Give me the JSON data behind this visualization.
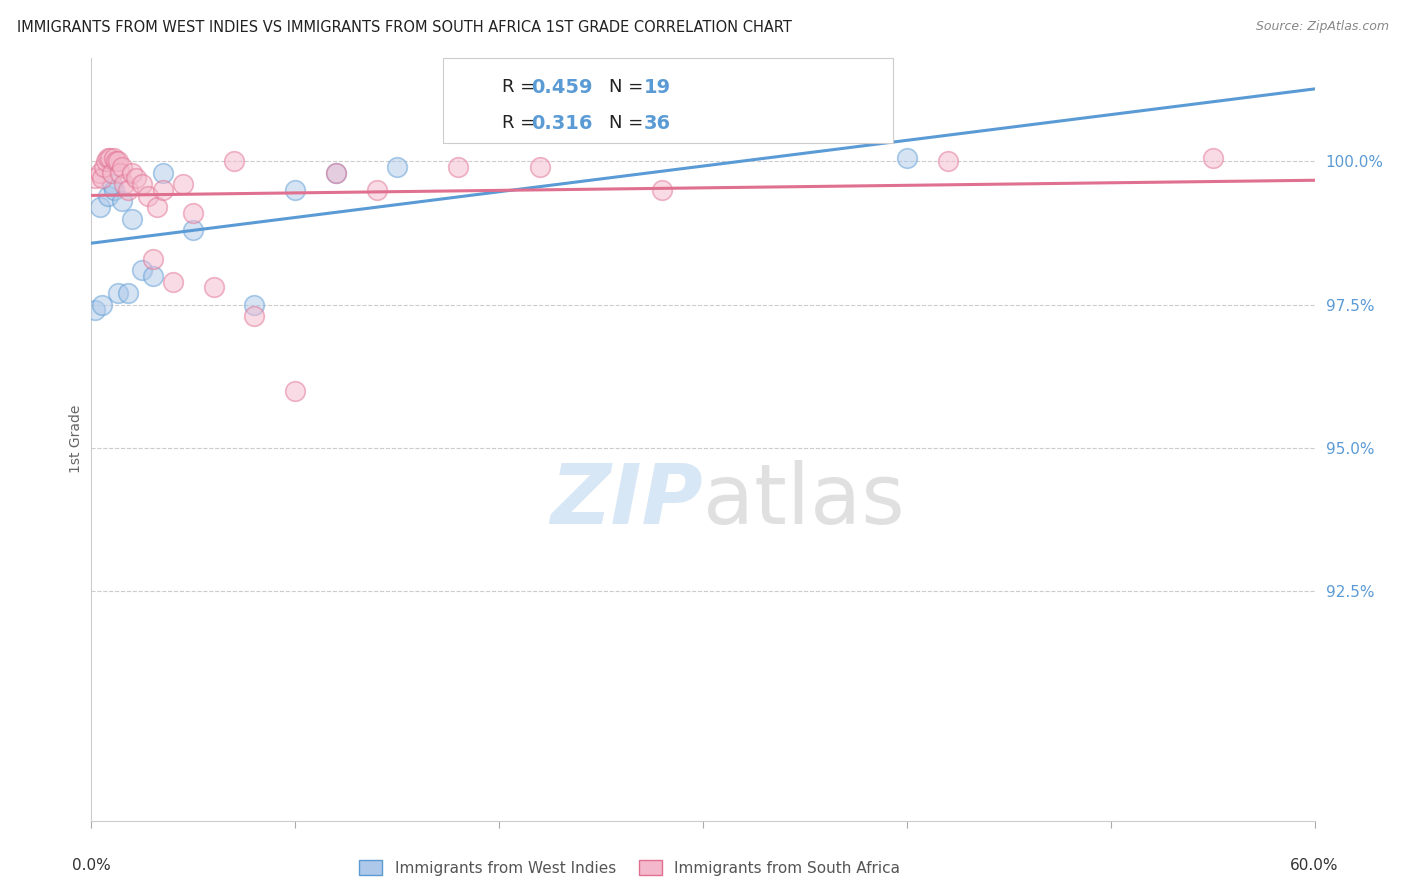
{
  "title": "IMMIGRANTS FROM WEST INDIES VS IMMIGRANTS FROM SOUTH AFRICA 1ST GRADE CORRELATION CHART",
  "source": "Source: ZipAtlas.com",
  "ylabel": "1st Grade",
  "xlim": [
    0.0,
    60.0
  ],
  "ylim": [
    88.5,
    101.8
  ],
  "yticks": [
    92.5,
    95.0,
    97.5,
    100.0
  ],
  "ytick_labels": [
    "92.5%",
    "95.0%",
    "97.5%",
    "100.0%"
  ],
  "west_indies_R": 0.459,
  "west_indies_N": 19,
  "south_africa_R": 0.316,
  "south_africa_N": 36,
  "west_indies_color": "#adc8e8",
  "south_africa_color": "#f4b8cc",
  "west_indies_line_color": "#5b9bd5",
  "south_africa_line_color": "#e07090",
  "legend_label_wi": "Immigrants from West Indies",
  "legend_label_sa": "Immigrants from South Africa",
  "west_indies_x": [
    0.2,
    0.4,
    0.5,
    0.8,
    1.0,
    1.1,
    1.3,
    1.5,
    1.8,
    2.0,
    2.5,
    3.0,
    3.5,
    5.0,
    8.0,
    10.0,
    12.0,
    15.0,
    40.0
  ],
  "west_indies_y": [
    97.4,
    99.2,
    97.5,
    99.4,
    99.6,
    99.5,
    97.7,
    99.3,
    97.7,
    99.0,
    98.1,
    98.0,
    99.8,
    98.8,
    97.5,
    99.5,
    99.8,
    99.9,
    100.05
  ],
  "south_africa_x": [
    0.2,
    0.4,
    0.5,
    0.6,
    0.7,
    0.8,
    0.9,
    1.0,
    1.1,
    1.2,
    1.3,
    1.4,
    1.5,
    1.6,
    1.8,
    2.0,
    2.2,
    2.5,
    2.8,
    3.0,
    3.2,
    3.5,
    4.0,
    4.5,
    5.0,
    6.0,
    7.0,
    8.0,
    10.0,
    12.0,
    14.0,
    18.0,
    22.0,
    28.0,
    42.0,
    55.0
  ],
  "south_africa_y": [
    99.7,
    99.8,
    99.7,
    99.9,
    100.0,
    100.05,
    100.05,
    99.8,
    100.05,
    100.0,
    100.0,
    99.8,
    99.9,
    99.6,
    99.5,
    99.8,
    99.7,
    99.6,
    99.4,
    98.3,
    99.2,
    99.5,
    97.9,
    99.6,
    99.1,
    97.8,
    100.0,
    97.3,
    96.0,
    99.8,
    99.5,
    99.9,
    99.9,
    99.5,
    100.0,
    100.05
  ],
  "marker_size": 200,
  "alpha": 0.5
}
